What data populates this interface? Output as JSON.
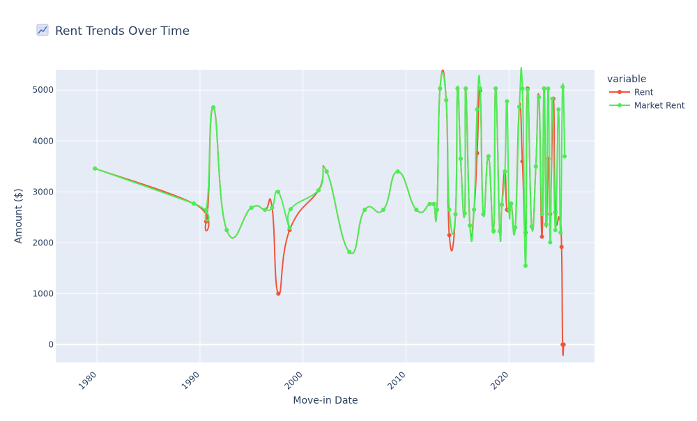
{
  "chart_data": {
    "type": "line",
    "title": "Rent Trends Over Time",
    "title_icon": "chart-increasing-icon",
    "xlabel": "Move-in Date",
    "ylabel": "Amount ($)",
    "x_ticks": [
      1980,
      1990,
      2000,
      2010,
      2020
    ],
    "y_ticks": [
      0,
      1000,
      2000,
      3000,
      4000,
      5000
    ],
    "xlim": [
      1976.0,
      2028.3
    ],
    "ylim": [
      -350,
      5400
    ],
    "grid": true,
    "plot_background": "#e5ecf6",
    "legend": {
      "title": "variable",
      "placement": "top-right outside",
      "entries": [
        {
          "name": "Rent",
          "color": "#ef553b"
        },
        {
          "name": "Market Rent",
          "color": "#4ded54"
        }
      ]
    },
    "series": [
      {
        "name": "Rent",
        "color": "#ef553b",
        "points": [
          [
            1979.8,
            3460
          ],
          [
            1989.4,
            2770
          ],
          [
            1990.6,
            2420
          ],
          [
            1991.3,
            4660
          ],
          [
            1992.6,
            2250
          ],
          [
            1995.0,
            2690
          ],
          [
            1996.3,
            2650
          ],
          [
            1997.0,
            2690
          ],
          [
            1997.6,
            1000
          ],
          [
            1998.7,
            2250
          ],
          [
            2001.5,
            3030
          ],
          [
            2002.3,
            3400
          ],
          [
            2004.5,
            1820
          ],
          [
            2006.0,
            2650
          ],
          [
            2007.8,
            2650
          ],
          [
            2009.2,
            3400
          ],
          [
            2011.0,
            2650
          ],
          [
            2012.3,
            2760
          ],
          [
            2012.7,
            2760
          ],
          [
            2013.0,
            2650
          ],
          [
            2013.3,
            5030
          ],
          [
            2013.9,
            4800
          ],
          [
            2014.2,
            2150
          ],
          [
            2014.8,
            2560
          ],
          [
            2015.0,
            5030
          ],
          [
            2015.3,
            3650
          ],
          [
            2015.7,
            2580
          ],
          [
            2015.8,
            5030
          ],
          [
            2016.2,
            2340
          ],
          [
            2016.6,
            2650
          ],
          [
            2016.9,
            3760
          ],
          [
            2017.2,
            4990
          ],
          [
            2017.5,
            2560
          ],
          [
            2018.0,
            3700
          ],
          [
            2018.5,
            2230
          ],
          [
            2018.7,
            5030
          ],
          [
            2019.1,
            2230
          ],
          [
            2019.3,
            2750
          ],
          [
            2019.6,
            3400
          ],
          [
            2019.8,
            2650
          ],
          [
            2020.2,
            2770
          ],
          [
            2020.6,
            2300
          ],
          [
            2021.0,
            4670
          ],
          [
            2021.3,
            3600
          ],
          [
            2021.6,
            2200
          ],
          [
            2021.8,
            5030
          ],
          [
            2022.2,
            2320
          ],
          [
            2022.6,
            3500
          ],
          [
            2022.9,
            4860
          ],
          [
            2023.2,
            2120
          ],
          [
            2023.4,
            5030
          ],
          [
            2023.6,
            2360
          ],
          [
            2023.8,
            3650
          ],
          [
            2024.0,
            2560
          ],
          [
            2024.3,
            4830
          ],
          [
            2024.5,
            2600
          ],
          [
            2024.9,
            2480
          ],
          [
            2025.1,
            1920
          ],
          [
            2025.2,
            0
          ],
          [
            2025.3,
            0
          ]
        ]
      },
      {
        "name": "Market Rent",
        "color": "#4ded54",
        "points": [
          [
            1979.8,
            3460
          ],
          [
            1989.4,
            2770
          ],
          [
            1990.6,
            2650
          ],
          [
            1991.3,
            4660
          ],
          [
            1992.6,
            2250
          ],
          [
            1995.0,
            2690
          ],
          [
            1996.3,
            2650
          ],
          [
            1997.0,
            2690
          ],
          [
            1997.6,
            3000
          ],
          [
            1998.7,
            2290
          ],
          [
            1998.8,
            2660
          ],
          [
            2001.5,
            3030
          ],
          [
            2002.3,
            3400
          ],
          [
            2004.5,
            1820
          ],
          [
            2006.0,
            2650
          ],
          [
            2007.8,
            2650
          ],
          [
            2009.2,
            3400
          ],
          [
            2011.0,
            2650
          ],
          [
            2012.3,
            2760
          ],
          [
            2012.7,
            2760
          ],
          [
            2013.0,
            2650
          ],
          [
            2013.3,
            5030
          ],
          [
            2013.9,
            4800
          ],
          [
            2014.2,
            2650
          ],
          [
            2014.8,
            2560
          ],
          [
            2015.0,
            5030
          ],
          [
            2015.3,
            3650
          ],
          [
            2015.7,
            2580
          ],
          [
            2015.8,
            5030
          ],
          [
            2016.2,
            2340
          ],
          [
            2016.6,
            2650
          ],
          [
            2016.9,
            4620
          ],
          [
            2017.2,
            5030
          ],
          [
            2017.5,
            2560
          ],
          [
            2018.0,
            3700
          ],
          [
            2018.5,
            2230
          ],
          [
            2018.7,
            5030
          ],
          [
            2019.1,
            2230
          ],
          [
            2019.3,
            2750
          ],
          [
            2019.6,
            3400
          ],
          [
            2019.8,
            4780
          ],
          [
            2020.0,
            2650
          ],
          [
            2020.2,
            2770
          ],
          [
            2020.6,
            2300
          ],
          [
            2021.0,
            4670
          ],
          [
            2021.3,
            5030
          ],
          [
            2021.6,
            1550
          ],
          [
            2021.8,
            5010
          ],
          [
            2022.2,
            2320
          ],
          [
            2022.6,
            3500
          ],
          [
            2022.9,
            4860
          ],
          [
            2023.2,
            2560
          ],
          [
            2023.4,
            5030
          ],
          [
            2023.6,
            2360
          ],
          [
            2023.8,
            5030
          ],
          [
            2024.0,
            2010
          ],
          [
            2024.2,
            4830
          ],
          [
            2024.5,
            2250
          ],
          [
            2024.8,
            4620
          ],
          [
            2025.0,
            2200
          ],
          [
            2025.2,
            5060
          ],
          [
            2025.4,
            3700
          ]
        ]
      }
    ]
  }
}
